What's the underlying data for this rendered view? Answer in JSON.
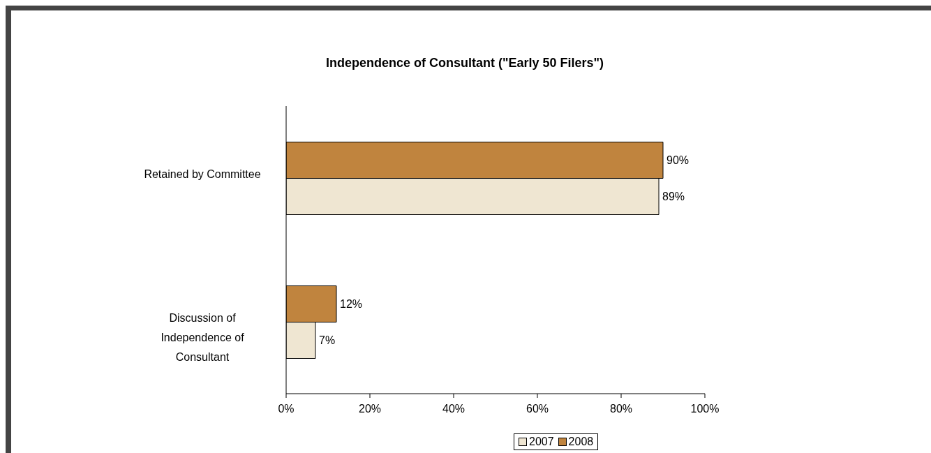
{
  "chart_data": {
    "type": "bar",
    "orientation": "horizontal",
    "title": "Independence of Consultant (\"Early 50 Filers\")",
    "categories": [
      "Retained by Committee",
      "Discussion of Independence of Consultant"
    ],
    "series": [
      {
        "name": "2007",
        "color": "#efe6d2",
        "values": [
          89,
          7
        ],
        "value_labels": [
          "89%",
          "7%"
        ]
      },
      {
        "name": "2008",
        "color": "#c0843e",
        "values": [
          90,
          12
        ],
        "value_labels": [
          "90%",
          "12%"
        ]
      }
    ],
    "xlim": [
      0,
      100
    ],
    "xticks": [
      {
        "value": 0,
        "label": "0%"
      },
      {
        "value": 20,
        "label": "20%"
      },
      {
        "value": 40,
        "label": "40%"
      },
      {
        "value": 60,
        "label": "60%"
      },
      {
        "value": 80,
        "label": "80%"
      },
      {
        "value": 100,
        "label": "100%"
      }
    ],
    "grid": false,
    "legend": "bottom"
  }
}
